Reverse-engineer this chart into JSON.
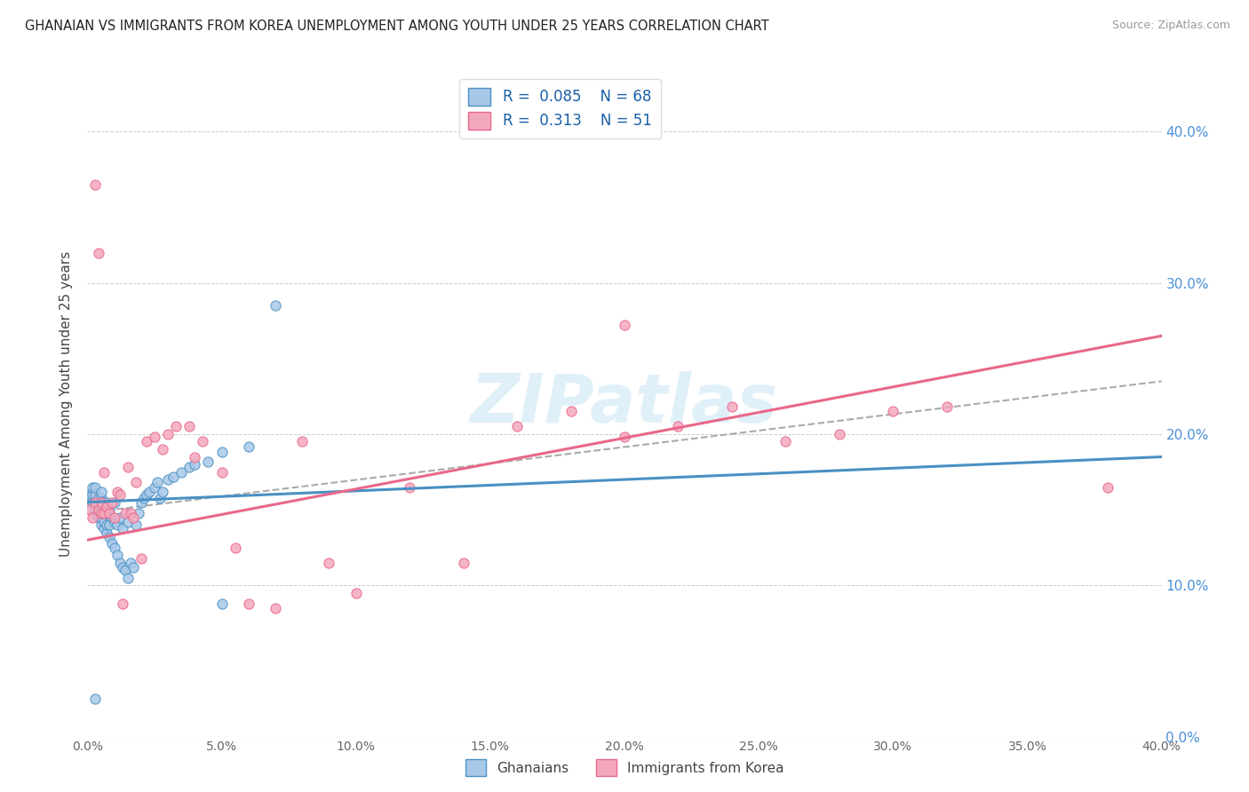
{
  "title": "GHANAIAN VS IMMIGRANTS FROM KOREA UNEMPLOYMENT AMONG YOUTH UNDER 25 YEARS CORRELATION CHART",
  "source": "Source: ZipAtlas.com",
  "ylabel": "Unemployment Among Youth under 25 years",
  "xlim": [
    0.0,
    0.4
  ],
  "ylim": [
    0.0,
    0.44
  ],
  "xticks": [
    0.0,
    0.05,
    0.1,
    0.15,
    0.2,
    0.25,
    0.3,
    0.35,
    0.4
  ],
  "yticks": [
    0.0,
    0.1,
    0.2,
    0.3,
    0.4
  ],
  "ghanaian_R": 0.085,
  "ghanaian_N": 68,
  "korea_R": 0.313,
  "korea_N": 51,
  "ghanaian_color": "#a8c8e8",
  "korea_color": "#f4a8be",
  "ghanaian_line_color": "#4a90c4",
  "korea_line_color": "#e8688a",
  "trend_dash_color": "#aaaaaa",
  "legend_label_1": "Ghanaians",
  "legend_label_2": "Immigrants from Korea",
  "watermark": "ZIPatlas",
  "ghanaian_x": [
    0.001,
    0.001,
    0.002,
    0.002,
    0.002,
    0.003,
    0.003,
    0.003,
    0.003,
    0.003,
    0.004,
    0.004,
    0.004,
    0.004,
    0.005,
    0.005,
    0.005,
    0.005,
    0.005,
    0.005,
    0.006,
    0.006,
    0.006,
    0.006,
    0.007,
    0.007,
    0.007,
    0.007,
    0.008,
    0.008,
    0.008,
    0.009,
    0.009,
    0.01,
    0.01,
    0.01,
    0.011,
    0.011,
    0.012,
    0.012,
    0.013,
    0.013,
    0.014,
    0.015,
    0.015,
    0.016,
    0.017,
    0.018,
    0.019,
    0.02,
    0.021,
    0.022,
    0.023,
    0.025,
    0.026,
    0.027,
    0.028,
    0.03,
    0.032,
    0.035,
    0.038,
    0.04,
    0.045,
    0.05,
    0.06,
    0.07,
    0.003,
    0.05
  ],
  "ghanaian_y": [
    0.155,
    0.16,
    0.155,
    0.16,
    0.165,
    0.148,
    0.15,
    0.155,
    0.16,
    0.165,
    0.145,
    0.15,
    0.155,
    0.158,
    0.14,
    0.145,
    0.15,
    0.155,
    0.158,
    0.162,
    0.138,
    0.142,
    0.148,
    0.155,
    0.135,
    0.14,
    0.148,
    0.155,
    0.132,
    0.14,
    0.15,
    0.128,
    0.145,
    0.125,
    0.142,
    0.155,
    0.12,
    0.14,
    0.115,
    0.145,
    0.112,
    0.138,
    0.11,
    0.105,
    0.142,
    0.115,
    0.112,
    0.14,
    0.148,
    0.155,
    0.158,
    0.16,
    0.162,
    0.165,
    0.168,
    0.158,
    0.162,
    0.17,
    0.172,
    0.175,
    0.178,
    0.18,
    0.182,
    0.188,
    0.192,
    0.285,
    0.025,
    0.088
  ],
  "korea_x": [
    0.001,
    0.002,
    0.003,
    0.003,
    0.004,
    0.004,
    0.005,
    0.005,
    0.006,
    0.006,
    0.007,
    0.008,
    0.009,
    0.01,
    0.011,
    0.012,
    0.013,
    0.014,
    0.015,
    0.016,
    0.017,
    0.018,
    0.02,
    0.022,
    0.025,
    0.028,
    0.03,
    0.033,
    0.038,
    0.04,
    0.043,
    0.05,
    0.055,
    0.06,
    0.07,
    0.08,
    0.09,
    0.1,
    0.12,
    0.14,
    0.16,
    0.18,
    0.2,
    0.22,
    0.24,
    0.26,
    0.28,
    0.3,
    0.32,
    0.38,
    0.2
  ],
  "korea_y": [
    0.15,
    0.145,
    0.155,
    0.365,
    0.15,
    0.32,
    0.148,
    0.155,
    0.148,
    0.175,
    0.152,
    0.148,
    0.155,
    0.145,
    0.162,
    0.16,
    0.088,
    0.148,
    0.178,
    0.148,
    0.145,
    0.168,
    0.118,
    0.195,
    0.198,
    0.19,
    0.2,
    0.205,
    0.205,
    0.185,
    0.195,
    0.175,
    0.125,
    0.088,
    0.085,
    0.195,
    0.115,
    0.095,
    0.165,
    0.115,
    0.205,
    0.215,
    0.198,
    0.205,
    0.218,
    0.195,
    0.2,
    0.215,
    0.218,
    0.165,
    0.272
  ],
  "gh_trend_x0": 0.0,
  "gh_trend_x1": 0.4,
  "gh_trend_y0": 0.155,
  "gh_trend_y1": 0.185,
  "ko_trend_x0": 0.0,
  "ko_trend_x1": 0.4,
  "ko_trend_y0": 0.13,
  "ko_trend_y1": 0.265,
  "dash_trend_x0": 0.0,
  "dash_trend_x1": 0.4,
  "dash_trend_y0": 0.148,
  "dash_trend_y1": 0.235
}
